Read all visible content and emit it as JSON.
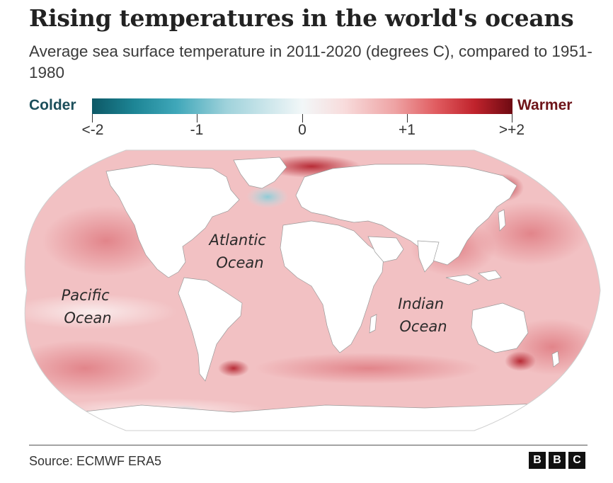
{
  "title": "Rising temperatures in the world's oceans",
  "subtitle": "Average sea surface temperature in 2011-2020 (degrees C), compared to 1951-1980",
  "legend": {
    "cold_label": "Colder",
    "warm_label": "Warmer",
    "ticks": [
      "<-2",
      "-1",
      "0",
      "+1",
      ">+2"
    ],
    "colors": {
      "coldest": "#0d5866",
      "neutral": "#f2f7f8",
      "warmest": "#6e0a12"
    }
  },
  "map": {
    "projection": "Robinson-like world map",
    "ocean_labels": {
      "pacific": [
        "Pacific",
        "Ocean"
      ],
      "atlantic": [
        "Atlantic",
        "Ocean"
      ],
      "indian": [
        "Indian",
        "Ocean"
      ]
    },
    "land_color": "#ffffff",
    "ocean_base_color": "#f4c4c5"
  },
  "source": "Source: ECMWF ERA5",
  "logo": [
    "B",
    "B",
    "C"
  ]
}
